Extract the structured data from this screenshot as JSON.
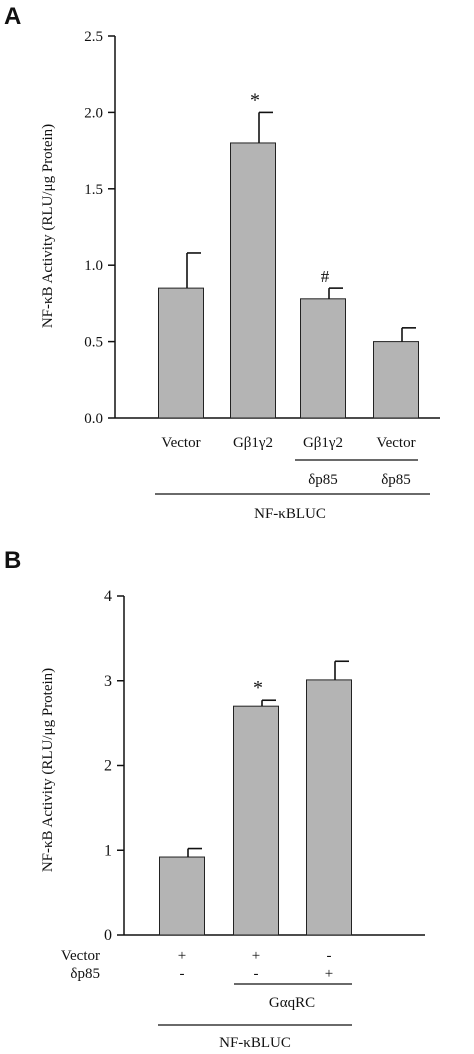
{
  "chart_data": [
    {
      "panel": "A",
      "type": "bar",
      "ylabel": "NF-κB Activity (RLU/μg Protein)",
      "ylim": [
        0,
        2.5
      ],
      "yticks": [
        "0.0",
        "0.5",
        "1.0",
        "1.5",
        "2.0",
        "2.5"
      ],
      "categories": [
        "Vector",
        "Gβ1γ2",
        "Gβ1γ2",
        "Vector"
      ],
      "values": [
        0.85,
        1.8,
        0.78,
        0.5
      ],
      "errors": [
        0.23,
        0.2,
        0.07,
        0.09
      ],
      "annotations": [
        "",
        "*",
        "#",
        ""
      ],
      "sublabels": [
        "δp85",
        "δp85"
      ],
      "group_label": "NF-κBLUC",
      "bar_color": "#b4b4b4"
    },
    {
      "panel": "B",
      "type": "bar",
      "ylabel": "NF-κB Activity (RLU/μg Protein)",
      "ylim": [
        0,
        4
      ],
      "yticks": [
        "0",
        "1",
        "2",
        "3",
        "4"
      ],
      "values": [
        0.92,
        2.7,
        3.01
      ],
      "errors": [
        0.1,
        0.07,
        0.22
      ],
      "annotations": [
        "",
        "*",
        ""
      ],
      "row_labels": [
        "Vector",
        "δp85"
      ],
      "row_signs": [
        [
          "+",
          "+",
          "-"
        ],
        [
          "-",
          "-",
          "+"
        ]
      ],
      "treatment_label": "GαqRC",
      "group_label": "NF-κBLUC",
      "bar_color": "#b4b4b4"
    }
  ]
}
